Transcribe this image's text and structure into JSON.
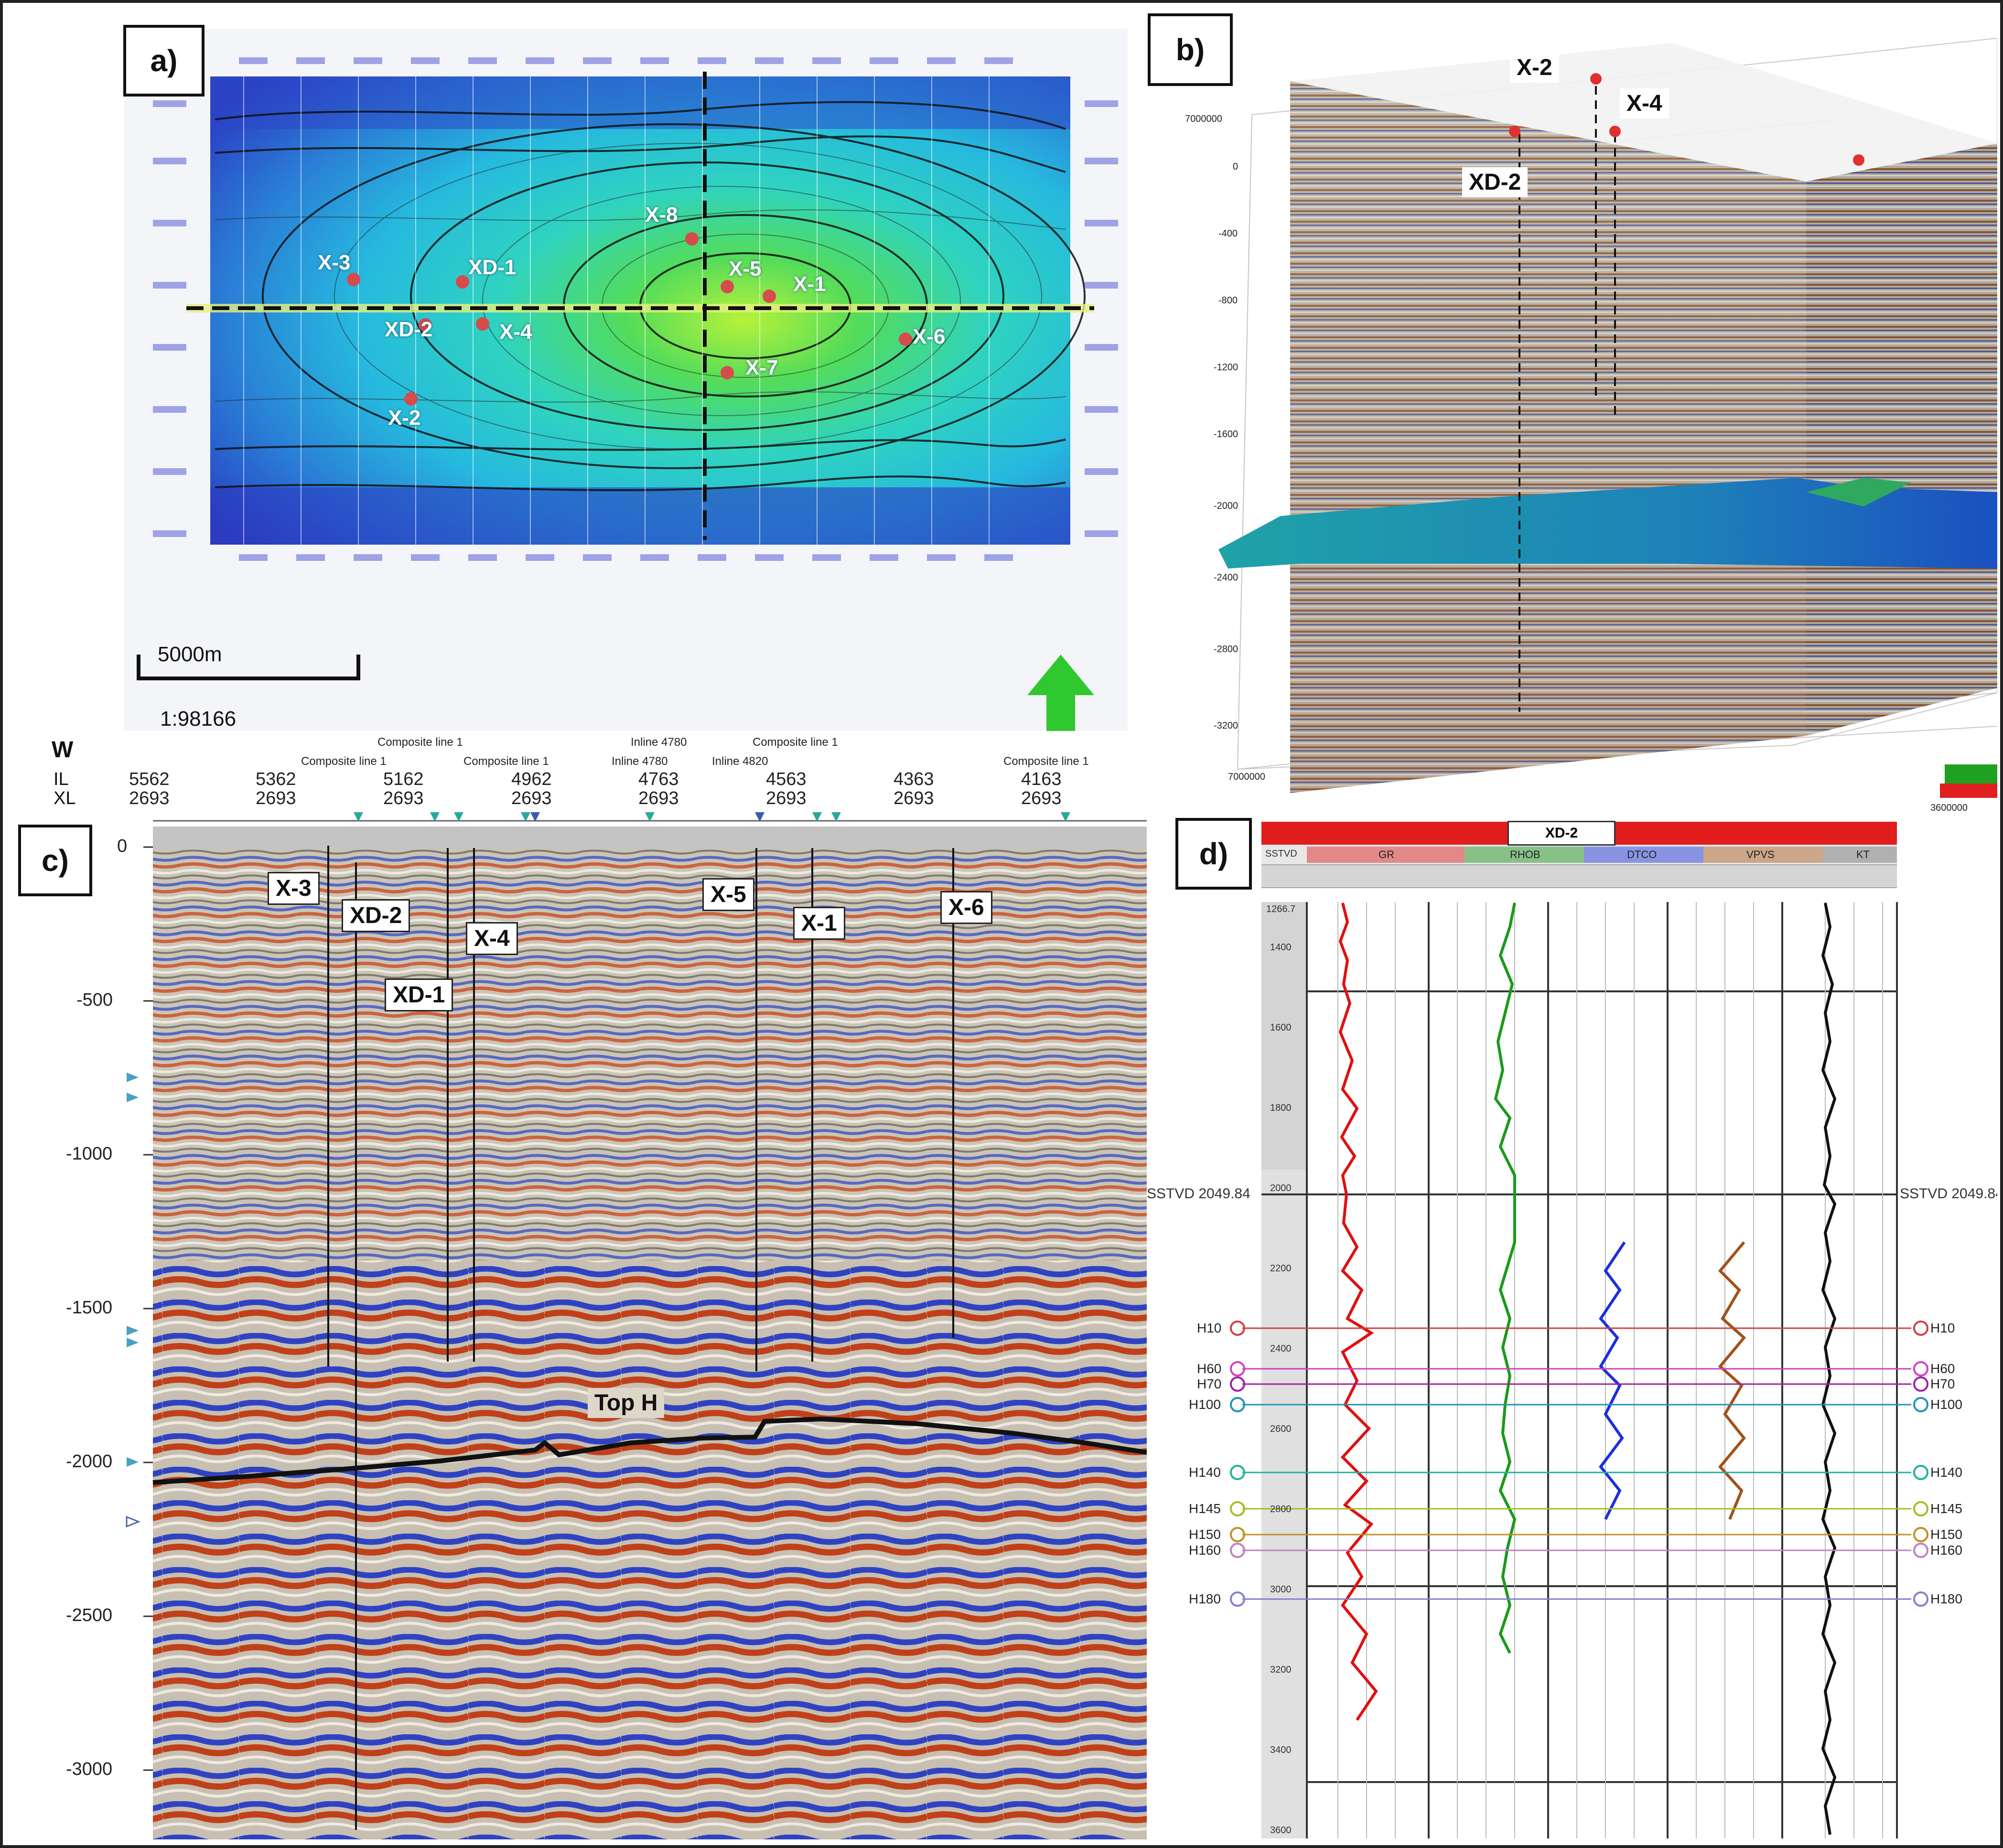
{
  "panels": {
    "a": "a)",
    "b": "b)",
    "c": "c)",
    "d": "d)"
  },
  "map": {
    "scale_label": "5000m",
    "scale_ratio": "1:98166",
    "wells": [
      "X-8",
      "X-3",
      "XD-1",
      "X-5",
      "X-1",
      "XD-2",
      "X-4",
      "X-6",
      "X-7",
      "X-2"
    ]
  },
  "view3d": {
    "wells": [
      "X-2",
      "X-4",
      "XD-2"
    ],
    "depth_ticks": [
      "7000000",
      "0",
      "-400",
      "-800",
      "-1200",
      "-1600",
      "-2000",
      "-2400",
      "-2800",
      "-3200"
    ],
    "corner_left": "7000000",
    "corner_right": "3600000"
  },
  "section": {
    "direction": "W",
    "il_label": "IL",
    "xl_label": "XL",
    "il_values": [
      "5562",
      "5362",
      "5162",
      "4962",
      "4763",
      "4563",
      "4363",
      "4163"
    ],
    "xl_values": [
      "2693",
      "2693",
      "2693",
      "2693",
      "2693",
      "2693",
      "2693",
      "2693"
    ],
    "composite_labels": [
      "Composite line 1",
      "Composite line 1",
      "Composite line 1",
      "Composite line 1",
      "Composite line 1"
    ],
    "inline_labels": [
      "Inline 4780",
      "Inline 4780",
      "Inline 4820"
    ],
    "depth_ticks": [
      "0",
      "-500",
      "-1000",
      "-1500",
      "-2000",
      "-2500",
      "-3000"
    ],
    "wells": [
      "X-3",
      "XD-2",
      "X-4",
      "XD-1",
      "X-5",
      "X-1",
      "X-6"
    ],
    "horizon": "Top H"
  },
  "welllog": {
    "well": "XD-2",
    "tracks": [
      "SSTVD",
      "GR",
      "RHOB",
      "DTCO",
      "VPVS",
      "KT"
    ],
    "depth_ticks": [
      "1266.7",
      "1400",
      "1600",
      "1800",
      "2000",
      "2200",
      "2400",
      "2600",
      "2800",
      "3000",
      "3200",
      "3400",
      "3600"
    ],
    "marker_depth_label": "SSTVD 2049.84",
    "markers": [
      "H10",
      "H60",
      "H70",
      "H100",
      "H140",
      "H145",
      "H150",
      "H160",
      "H180"
    ],
    "colors": {
      "header": "#e11d1d",
      "gr": "#e01010",
      "rhob": "#1a9a1a",
      "dtco": "#1a2ee0",
      "vpvs": "#a0521a",
      "kt": "#111111"
    }
  }
}
